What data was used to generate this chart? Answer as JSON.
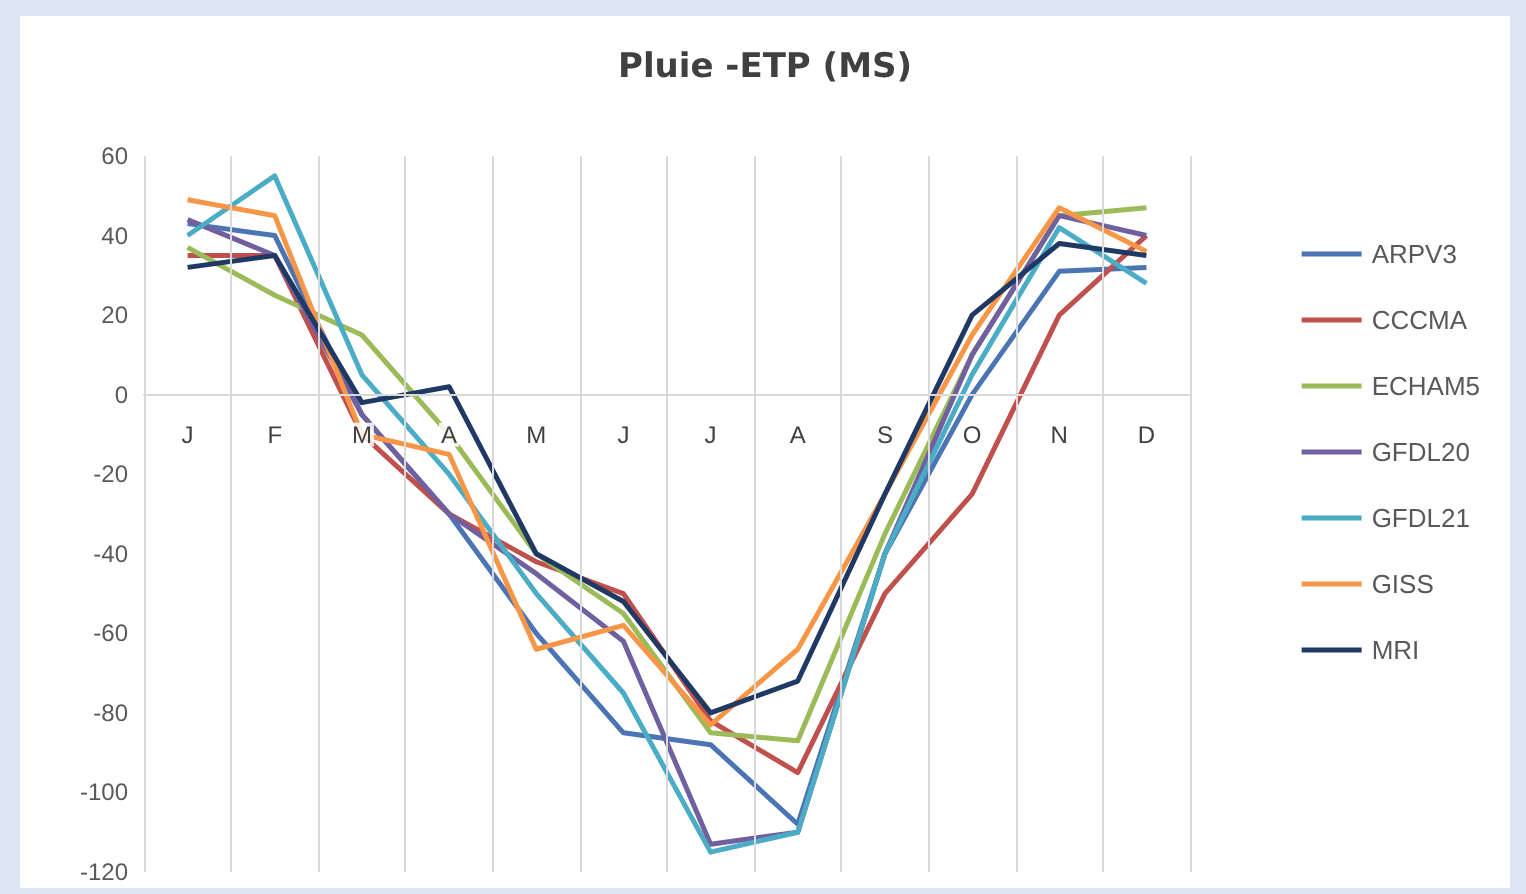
{
  "chart_data": {
    "type": "line",
    "title": "Pluie -ETP (MS)",
    "categories": [
      "J",
      "F",
      "M",
      "A",
      "M",
      "J",
      "J",
      "A",
      "S",
      "O",
      "N",
      "D"
    ],
    "series": [
      {
        "name": "ARPV3",
        "color": "#4a74b4",
        "values": [
          43,
          40,
          -5,
          -30,
          -60,
          -85,
          -88,
          -108,
          -40,
          0,
          31,
          32
        ]
      },
      {
        "name": "CCCMA",
        "color": "#c0504d",
        "values": [
          35,
          35,
          -10,
          -30,
          -42,
          -50,
          -82,
          -95,
          -50,
          -25,
          20,
          40
        ]
      },
      {
        "name": "ECHAM5",
        "color": "#9bbb59",
        "values": [
          37,
          25,
          15,
          -10,
          -40,
          -55,
          -85,
          -87,
          -35,
          10,
          45,
          47
        ]
      },
      {
        "name": "GFDL20",
        "color": "#7060a0",
        "values": [
          44,
          35,
          -5,
          -30,
          -45,
          -62,
          -113,
          -110,
          -40,
          10,
          45,
          40
        ]
      },
      {
        "name": "GFDL21",
        "color": "#4bacc6",
        "values": [
          40,
          55,
          5,
          -20,
          -50,
          -75,
          -115,
          -110,
          -40,
          5,
          42,
          28
        ]
      },
      {
        "name": "GISS",
        "color": "#f79646",
        "values": [
          49,
          45,
          -10,
          -15,
          -64,
          -58,
          -83,
          -64,
          -25,
          15,
          47,
          36
        ]
      },
      {
        "name": "MRI",
        "color": "#1f3864",
        "values": [
          32,
          35,
          -2,
          2,
          -40,
          -52,
          -80,
          -72,
          -25,
          20,
          38,
          35
        ]
      }
    ],
    "ylim": [
      -120,
      60
    ],
    "yticks": [
      -120,
      -100,
      -80,
      -60,
      -40,
      -20,
      0,
      20,
      40,
      60
    ],
    "grid": "x",
    "legend": "right",
    "marker": "none",
    "line_style": "solid"
  }
}
